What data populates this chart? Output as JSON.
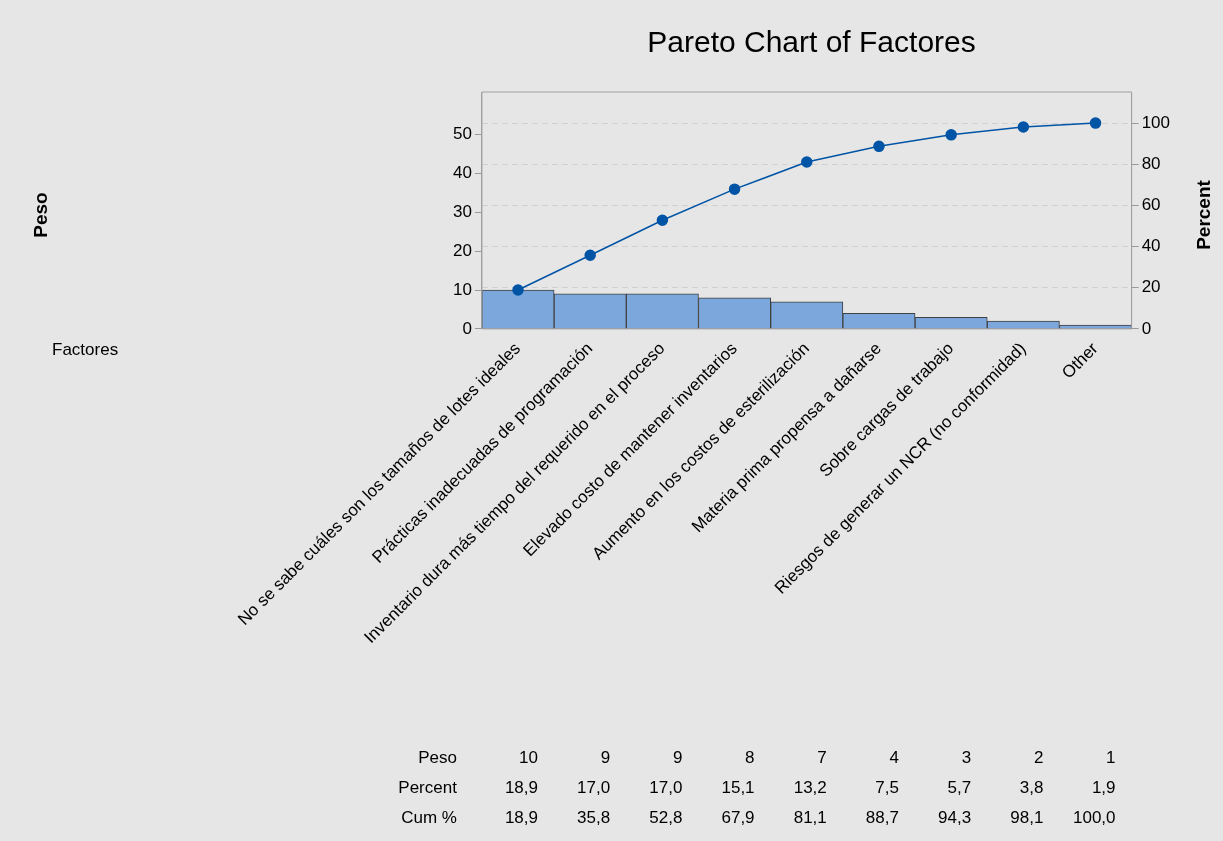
{
  "chart_data": {
    "type": "bar",
    "title": "Pareto Chart of Factores",
    "y2label": "Percent",
    "categories": [
      "No se sabe cuáles son los tamaños de lotes ideales",
      "Prácticas inadecuadas de programación",
      "Inventario dura más tiempo del requerido en el proceso",
      "Elevado costo de mantener inventarios",
      "Aumento en los costos de esterilización",
      "Materia prima propensa a dañarse",
      "Sobre cargas de trabajo",
      "Riesgos de generar un NCR (no conformidad)",
      "Other"
    ],
    "series": [
      {
        "color": "#7ba7dc",
        "values": [
          10,
          9,
          9,
          8,
          7,
          4,
          3,
          2,
          1
        ]
      },
      {
        "type": "line",
        "axis": "y2",
        "color": "#0054a6",
        "values": [
          18.9,
          35.8,
          52.8,
          67.9,
          81.1,
          88.7,
          94.3,
          98.1,
          100.0
        ],
        "value_labels": [
          "18,9",
          "35,8",
          "52,8",
          "67,9",
          "81,1",
          "88,7",
          "94,3",
          "98,1",
          "100,0"
        ]
      }
    ],
    "annotations": [
      "Peso",
      "Factores",
      "Peso",
      "Percent",
      "Cum %",
      "18,9",
      "17,0",
      "17,0",
      "15,1",
      "13,2",
      "7,5",
      "5,7",
      "3,8",
      "1,9"
    ],
    "data_labels": true,
    "ylim": [
      0,
      61
    ],
    "yticks": [
      0,
      10,
      20,
      30,
      40,
      50
    ],
    "y2lim": [
      0,
      115.1
    ],
    "y2ticks": [
      0,
      20,
      40,
      60,
      80,
      100
    ],
    "grid": "y",
    "legend": false,
    "marker": "circle",
    "line_style": "solid"
  }
}
